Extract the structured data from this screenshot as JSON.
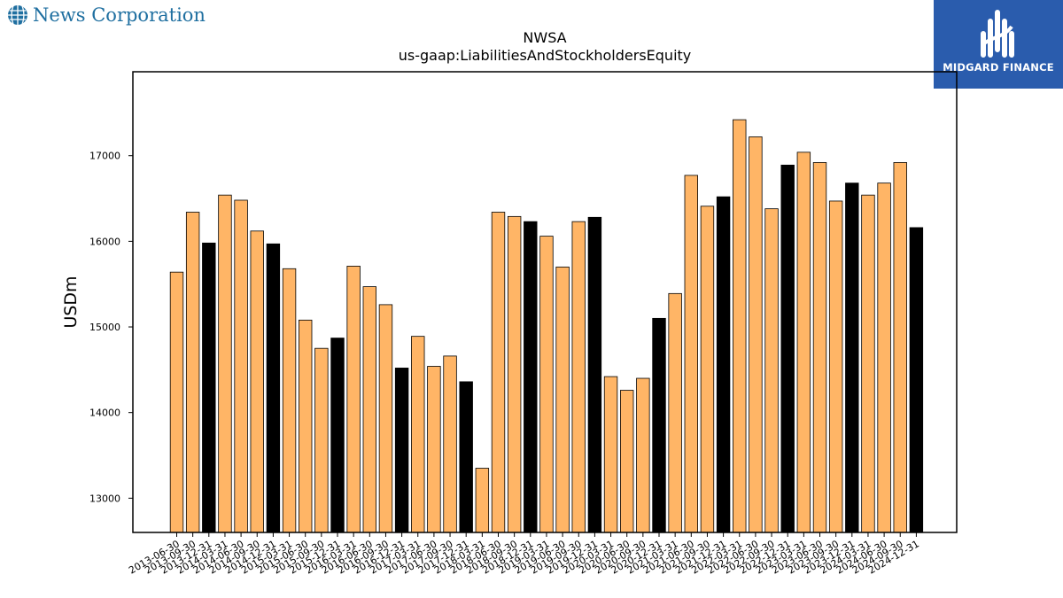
{
  "header": {
    "company_name": "News Corporation",
    "company_icon": "globe-icon",
    "brand_name": "MIDGARD FINANCE",
    "brand_logo": "midgard-logo-icon"
  },
  "chart_data": {
    "type": "bar",
    "title": "NWSA",
    "subtitle": "us-gaap:LiabilitiesAndStockholdersEquity",
    "xlabel": "",
    "ylabel": "USDm",
    "ylim": [
      12600,
      17980
    ],
    "yticks": [
      13000,
      14000,
      15000,
      16000,
      17000
    ],
    "grid": false,
    "colors": {
      "quarter": "#ffb566",
      "fiscal_year_end": "#000000",
      "edge": "#000000"
    },
    "categories": [
      "2013-06-30",
      "2013-09-30",
      "2013-12-31",
      "2014-03-31",
      "2014-06-30",
      "2014-09-30",
      "2014-12-31",
      "2015-03-31",
      "2015-06-30",
      "2015-09-30",
      "2015-12-31",
      "2016-03-31",
      "2016-06-30",
      "2016-09-30",
      "2016-12-31",
      "2017-03-31",
      "2017-06-30",
      "2017-09-30",
      "2017-12-31",
      "2018-03-31",
      "2018-06-30",
      "2018-09-30",
      "2018-12-31",
      "2019-03-31",
      "2019-06-30",
      "2019-09-30",
      "2019-12-31",
      "2020-03-31",
      "2020-06-30",
      "2020-09-30",
      "2020-12-31",
      "2021-03-31",
      "2021-06-30",
      "2021-09-30",
      "2021-12-31",
      "2022-03-31",
      "2022-06-30",
      "2022-09-30",
      "2022-12-31",
      "2023-03-31",
      "2023-06-30",
      "2023-09-30",
      "2023-12-31",
      "2024-03-31",
      "2024-06-30",
      "2024-09-30",
      "2024-12-31"
    ],
    "values": [
      15640,
      16340,
      15980,
      16540,
      16480,
      16120,
      15970,
      15680,
      15080,
      14750,
      14870,
      15710,
      15470,
      15260,
      14520,
      14890,
      14540,
      14660,
      14360,
      13350,
      16340,
      16290,
      16230,
      16060,
      15700,
      16230,
      16280,
      14420,
      14260,
      14400,
      15100,
      15390,
      16770,
      16410,
      16520,
      17420,
      17220,
      16380,
      16890,
      17040,
      16920,
      16470,
      16680,
      16540,
      16680,
      16920,
      16160
    ],
    "highlight": [
      false,
      false,
      true,
      false,
      false,
      false,
      true,
      false,
      false,
      false,
      true,
      false,
      false,
      false,
      true,
      false,
      false,
      false,
      true,
      false,
      false,
      false,
      true,
      false,
      false,
      false,
      true,
      false,
      false,
      false,
      true,
      false,
      false,
      false,
      true,
      false,
      false,
      false,
      true,
      false,
      false,
      false,
      true,
      false,
      false,
      false,
      true
    ]
  }
}
